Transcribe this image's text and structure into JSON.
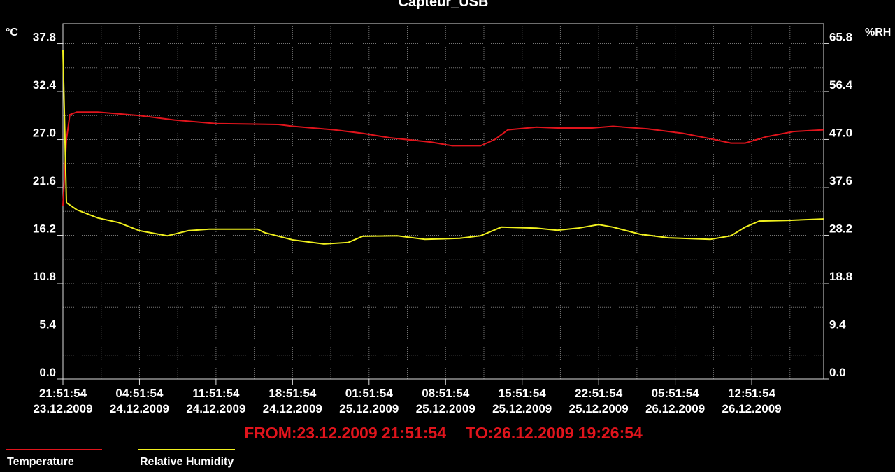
{
  "chart_data": {
    "type": "line",
    "title": "Capteur_USB",
    "y_left_unit": "°C",
    "y_right_unit": "%RH",
    "y_left_ticks": [
      "0.0",
      "5.4",
      "10.8",
      "16.2",
      "21.6",
      "27.0",
      "32.4",
      "37.8"
    ],
    "y_right_ticks": [
      "0.0",
      "9.4",
      "18.8",
      "28.2",
      "37.6",
      "47.0",
      "56.4",
      "65.8"
    ],
    "y_left_range": [
      0,
      40.05
    ],
    "y_right_range": [
      0,
      69.7
    ],
    "x_range": [
      "23.12.2009 21:51:54",
      "26.12.2009 19:26:54"
    ],
    "x_ticks": [
      {
        "time": "21:51:54",
        "date": "23.12.2009"
      },
      {
        "time": "04:51:54",
        "date": "24.12.2009"
      },
      {
        "time": "11:51:54",
        "date": "24.12.2009"
      },
      {
        "time": "18:51:54",
        "date": "24.12.2009"
      },
      {
        "time": "01:51:54",
        "date": "25.12.2009"
      },
      {
        "time": "08:51:54",
        "date": "25.12.2009"
      },
      {
        "time": "15:51:54",
        "date": "25.12.2009"
      },
      {
        "time": "22:51:54",
        "date": "25.12.2009"
      },
      {
        "time": "05:51:54",
        "date": "26.12.2009"
      },
      {
        "time": "12:51:54",
        "date": "26.12.2009"
      }
    ],
    "grid": true,
    "legend_placement": "bottom-left",
    "range_label": {
      "from": "FROM:23.12.2009 21:51:54",
      "to": "TO:26.12.2009 19:26:54"
    },
    "series": [
      {
        "name": "Temperature",
        "axis": "left",
        "color": "#e0141c",
        "points": [
          [
            "23.12.2009 21:52",
            19.5
          ],
          [
            "23.12.2009 22:11",
            27.0
          ],
          [
            "23.12.2009 22:30",
            29.8
          ],
          [
            "23.12.2009 23:08",
            30.1
          ],
          [
            "24.12.2009 01:03",
            30.1
          ],
          [
            "24.12.2009 04:52",
            29.7
          ],
          [
            "24.12.2009 08:04",
            29.2
          ],
          [
            "24.12.2009 11:52",
            28.8
          ],
          [
            "24.12.2009 17:34",
            28.7
          ],
          [
            "24.12.2009 18:52",
            28.5
          ],
          [
            "24.12.2009 22:40",
            28.1
          ],
          [
            "25.12.2009 01:16",
            27.7
          ],
          [
            "25.12.2009 03:46",
            27.2
          ],
          [
            "25.12.2009 07:34",
            26.7
          ],
          [
            "25.12.2009 09:28",
            26.3
          ],
          [
            "25.12.2009 12:04",
            26.3
          ],
          [
            "25.12.2009 13:22",
            27.0
          ],
          [
            "25.12.2009 14:34",
            28.1
          ],
          [
            "25.12.2009 17:10",
            28.4
          ],
          [
            "25.12.2009 19:04",
            28.3
          ],
          [
            "25.12.2009 22:16",
            28.3
          ],
          [
            "26.12.2009 00:10",
            28.5
          ],
          [
            "26.12.2009 03:22",
            28.2
          ],
          [
            "26.12.2009 06:34",
            27.7
          ],
          [
            "26.12.2009 09:04",
            27.1
          ],
          [
            "26.12.2009 10:58",
            26.6
          ],
          [
            "26.12.2009 12:16",
            26.6
          ],
          [
            "26.12.2009 14:10",
            27.3
          ],
          [
            "26.12.2009 16:40",
            27.9
          ],
          [
            "26.12.2009 19:26",
            28.1
          ]
        ]
      },
      {
        "name": "Relative Humidity",
        "axis": "right",
        "color": "#f0f01e",
        "points": [
          [
            "23.12.2009 21:52",
            64.5
          ],
          [
            "23.12.2009 22:11",
            34.6
          ],
          [
            "23.12.2009 23:08",
            33.2
          ],
          [
            "24.12.2009 01:03",
            31.6
          ],
          [
            "24.12.2009 02:57",
            30.7
          ],
          [
            "24.12.2009 04:52",
            29.1
          ],
          [
            "24.12.2009 07:25",
            28.1
          ],
          [
            "24.12.2009 09:20",
            29.1
          ],
          [
            "24.12.2009 11:14",
            29.4
          ],
          [
            "24.12.2009 15:40",
            29.4
          ],
          [
            "24.12.2009 16:20",
            28.7
          ],
          [
            "24.12.2009 18:52",
            27.3
          ],
          [
            "24.12.2009 21:44",
            26.5
          ],
          [
            "24.12.2009 23:58",
            26.8
          ],
          [
            "25.12.2009 01:16",
            28.0
          ],
          [
            "25.12.2009 04:28",
            28.1
          ],
          [
            "25.12.2009 06:58",
            27.4
          ],
          [
            "25.12.2009 10:10",
            27.6
          ],
          [
            "25.12.2009 12:04",
            28.1
          ],
          [
            "25.12.2009 13:58",
            29.8
          ],
          [
            "25.12.2009 17:10",
            29.6
          ],
          [
            "25.12.2009 19:04",
            29.2
          ],
          [
            "25.12.2009 20:58",
            29.6
          ],
          [
            "25.12.2009 22:52",
            30.3
          ],
          [
            "26.12.2009 00:10",
            29.8
          ],
          [
            "26.12.2009 02:40",
            28.4
          ],
          [
            "26.12.2009 05:16",
            27.7
          ],
          [
            "26.12.2009 09:04",
            27.4
          ],
          [
            "26.12.2009 10:58",
            28.1
          ],
          [
            "26.12.2009 12:16",
            29.8
          ],
          [
            "26.12.2009 13:34",
            31.0
          ],
          [
            "26.12.2009 16:04",
            31.1
          ],
          [
            "26.12.2009 19:26",
            31.4
          ]
        ]
      }
    ]
  }
}
